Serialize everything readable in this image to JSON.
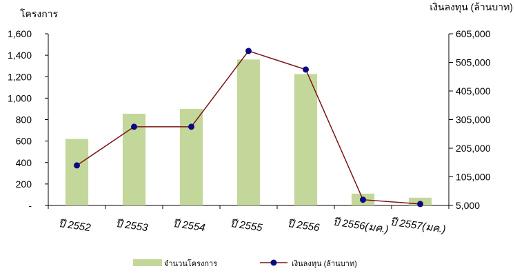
{
  "chart_data": {
    "type": "bar-line-combo",
    "categories": [
      "ปี 2552",
      "ปี 2553",
      "ปี 2554",
      "ปี 2555",
      "ปี 2556",
      "ปี 2556(มค.)",
      "ปี 2557(มค.)"
    ],
    "series": [
      {
        "name": "จำนวนโครงการ",
        "type": "bar",
        "axis": "left",
        "color": "#c4d79b",
        "values": [
          620,
          855,
          900,
          1360,
          1225,
          110,
          72
        ]
      },
      {
        "name": "เงินลงทุน (ล้านบาท)",
        "type": "line",
        "axis": "right",
        "color": "#7b1416",
        "marker_color": "#0a0a80",
        "values": [
          145000,
          280000,
          280000,
          545000,
          480000,
          25000,
          10000
        ]
      }
    ],
    "left_axis": {
      "title": "โครงการ",
      "min": 0,
      "max": 1600,
      "ticks": [
        0,
        200,
        400,
        600,
        800,
        1000,
        1200,
        1400,
        1600
      ],
      "tick_labels": [
        "-",
        "200",
        "400",
        "600",
        "800",
        "1,000",
        "1,200",
        "1,400",
        "1,600"
      ]
    },
    "right_axis": {
      "title": "เงินลงทุน (ล้านบาท)",
      "min": 5000,
      "max": 605000,
      "ticks": [
        5000,
        105000,
        205000,
        305000,
        405000,
        505000,
        605000
      ],
      "tick_labels": [
        "5,000",
        "105,000",
        "205,000",
        "305,000",
        "405,000",
        "505,000",
        "605,000"
      ]
    },
    "grid": false,
    "legend_position": "bottom"
  }
}
